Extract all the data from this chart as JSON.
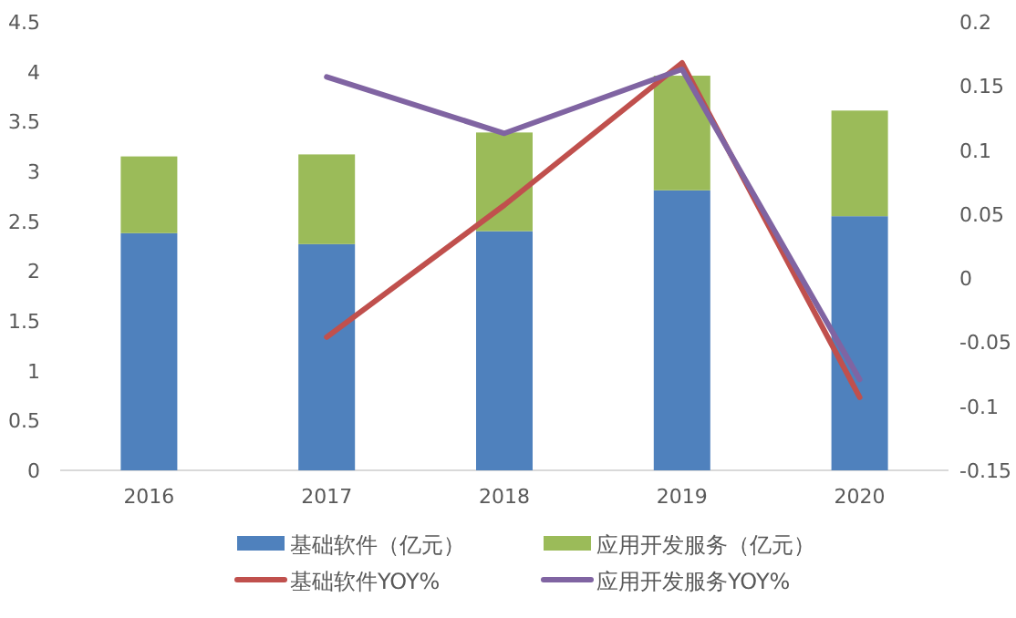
{
  "chart_data": {
    "type": "bar",
    "stacked": true,
    "categories": [
      "2016",
      "2017",
      "2018",
      "2019",
      "2020"
    ],
    "series": [
      {
        "name": "基础软件（亿元）",
        "color": "#4f81bd",
        "values": [
          2.38,
          2.27,
          2.4,
          2.81,
          2.55
        ]
      },
      {
        "name": "应用开发服务（亿元）",
        "color": "#9bbb59",
        "values": [
          0.77,
          0.9,
          0.99,
          1.15,
          1.06
        ]
      },
      {
        "name": "基础软件YOY%",
        "type": "line",
        "axis": "y2",
        "color": "#c0504d",
        "values": [
          null,
          -0.046,
          0.057,
          0.168,
          -0.093
        ]
      },
      {
        "name": "应用开发服务YOY%",
        "type": "line",
        "axis": "y2",
        "color": "#8064a2",
        "values": [
          null,
          0.157,
          0.113,
          0.163,
          -0.079
        ]
      }
    ],
    "ylim": [
      0,
      4.5
    ],
    "yticks": [
      0,
      0.5,
      1,
      1.5,
      2,
      2.5,
      3,
      3.5,
      4,
      4.5
    ],
    "y2lim": [
      -0.15,
      0.2
    ],
    "y2ticks": [
      -0.15,
      -0.1,
      -0.05,
      0,
      0.05,
      0.1,
      0.15,
      0.2
    ],
    "legend": "bottom",
    "grid": false
  }
}
